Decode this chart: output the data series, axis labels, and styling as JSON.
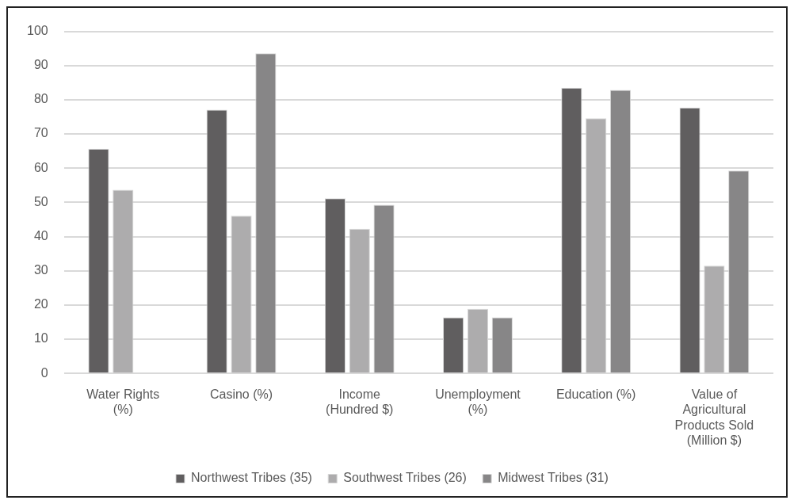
{
  "chart_data": {
    "type": "bar",
    "categories": [
      "Water Rights (%)",
      "Casino (%)",
      "Income (Hundred $)",
      "Unemployment (%)",
      "Education (%)",
      "Value of Agricultural Products Sold (Million $)"
    ],
    "series": [
      {
        "name": "Northwest Tribes (35)",
        "color": "#605e5f",
        "values": [
          65.7,
          77.1,
          51.2,
          16.4,
          83.5,
          77.7
        ]
      },
      {
        "name": "Southwest Tribes (26)",
        "color": "#adacad",
        "values": [
          53.7,
          46.1,
          42.3,
          18.9,
          74.6,
          31.5
        ]
      },
      {
        "name": "Midwest Tribes (31)",
        "color": "#878687",
        "values": [
          null,
          93.6,
          49.3,
          16.4,
          82.9,
          59.3
        ]
      }
    ],
    "ylim": [
      0,
      100
    ],
    "yticks": [
      0,
      10,
      20,
      30,
      40,
      50,
      60,
      70,
      80,
      90,
      100
    ],
    "grid": "y",
    "legend": "bottom"
  }
}
